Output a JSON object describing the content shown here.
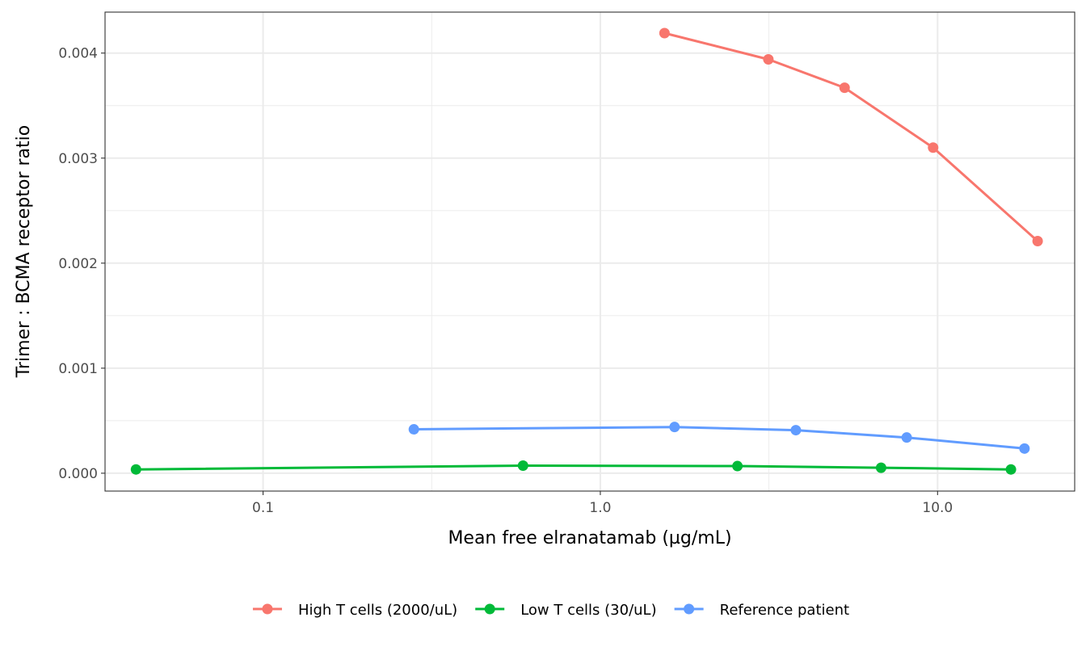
{
  "chart_data": {
    "type": "line",
    "xlabel": "Mean free elranatamab (µg/mL)",
    "ylabel": "Trimer : BCMA receptor ratio",
    "x_scale": "log10",
    "xlim": [
      0.034,
      25.5
    ],
    "ylim": [
      -0.00017,
      0.00439
    ],
    "x_ticks": [
      0.1,
      1.0,
      10.0
    ],
    "x_tick_labels": [
      "0.1",
      "1.0",
      "10.0"
    ],
    "y_ticks": [
      0.0,
      0.001,
      0.002,
      0.003,
      0.004
    ],
    "y_tick_labels": [
      "0.000",
      "0.001",
      "0.002",
      "0.003",
      "0.004"
    ],
    "grid": true,
    "legend_position": "bottom",
    "series": [
      {
        "name": "High T cells (2000/uL)",
        "color": "#F8766D",
        "x": [
          1.55,
          3.15,
          5.3,
          9.7,
          19.8
        ],
        "y": [
          0.00419,
          0.00394,
          0.00367,
          0.0031,
          0.00221
        ]
      },
      {
        "name": "Low T cells (30/uL)",
        "color": "#00BA38",
        "x": [
          0.042,
          0.59,
          2.55,
          6.8,
          16.5
        ],
        "y": [
          3.6e-05,
          7.2e-05,
          6.8e-05,
          5.2e-05,
          3.6e-05
        ]
      },
      {
        "name": "Reference patient",
        "color": "#619CFF",
        "x": [
          0.28,
          1.66,
          3.8,
          8.1,
          18.1
        ],
        "y": [
          0.000418,
          0.00044,
          0.00041,
          0.00034,
          0.000235
        ]
      }
    ]
  }
}
